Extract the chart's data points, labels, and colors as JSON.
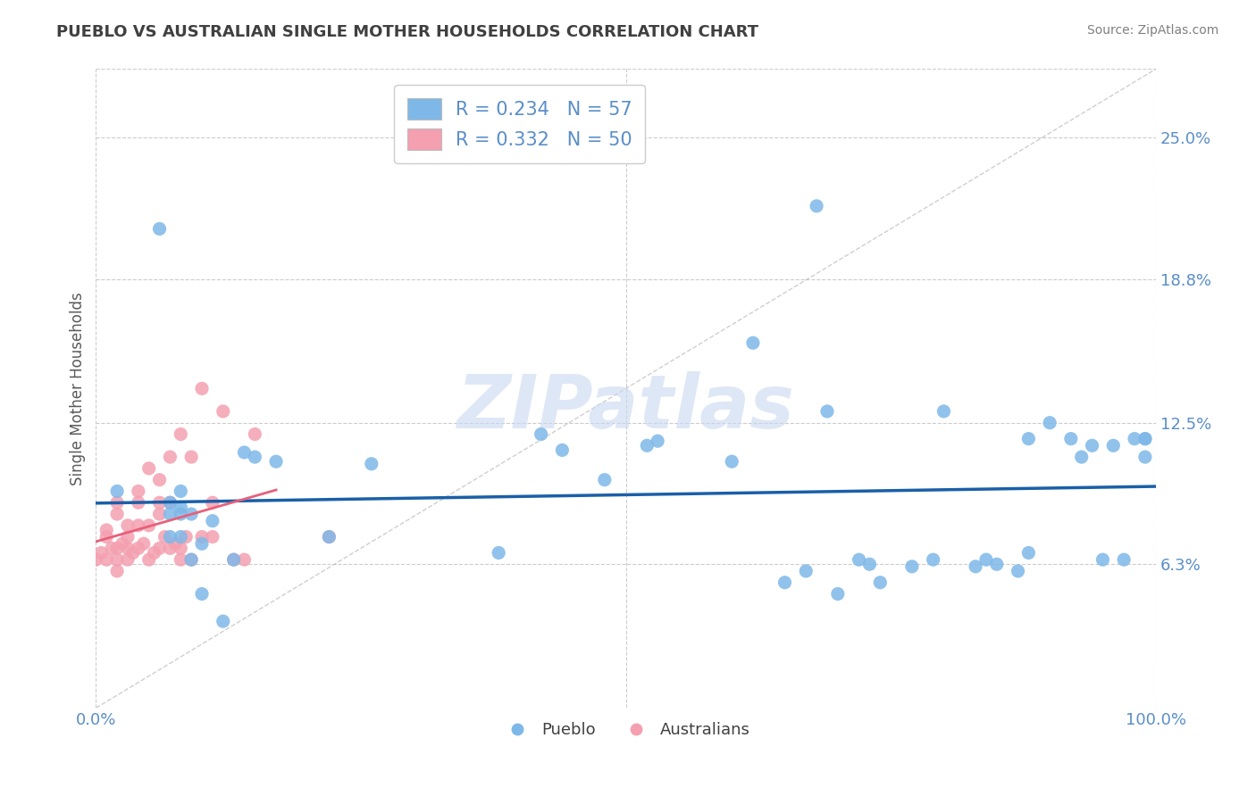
{
  "title": "PUEBLO VS AUSTRALIAN SINGLE MOTHER HOUSEHOLDS CORRELATION CHART",
  "source_text": "Source: ZipAtlas.com",
  "ylabel": "Single Mother Households",
  "xlim": [
    0.0,
    1.0
  ],
  "ylim": [
    0.0,
    0.28
  ],
  "yticks": [
    0.063,
    0.125,
    0.188,
    0.25
  ],
  "ytick_labels": [
    "6.3%",
    "12.5%",
    "18.8%",
    "25.0%"
  ],
  "xtick_labels": [
    "0.0%",
    "100.0%"
  ],
  "pueblo_color": "#7eb8e8",
  "australians_color": "#f4a0b0",
  "pueblo_line_color": "#1a5fa8",
  "australians_line_color": "#e8607a",
  "r_pueblo": 0.234,
  "n_pueblo": 57,
  "r_australians": 0.332,
  "n_australians": 50,
  "pueblo_x": [
    0.02,
    0.06,
    0.07,
    0.07,
    0.07,
    0.08,
    0.08,
    0.08,
    0.08,
    0.09,
    0.09,
    0.1,
    0.1,
    0.11,
    0.12,
    0.13,
    0.14,
    0.15,
    0.17,
    0.22,
    0.26,
    0.38,
    0.42,
    0.44,
    0.48,
    0.52,
    0.53,
    0.6,
    0.62,
    0.65,
    0.67,
    0.68,
    0.69,
    0.7,
    0.72,
    0.73,
    0.74,
    0.77,
    0.79,
    0.8,
    0.83,
    0.84,
    0.85,
    0.87,
    0.88,
    0.88,
    0.9,
    0.92,
    0.93,
    0.94,
    0.95,
    0.96,
    0.97,
    0.98,
    0.99,
    0.99,
    0.99
  ],
  "pueblo_y": [
    0.095,
    0.21,
    0.09,
    0.085,
    0.075,
    0.085,
    0.088,
    0.095,
    0.075,
    0.085,
    0.065,
    0.05,
    0.072,
    0.082,
    0.038,
    0.065,
    0.112,
    0.11,
    0.108,
    0.075,
    0.107,
    0.068,
    0.12,
    0.113,
    0.1,
    0.115,
    0.117,
    0.108,
    0.16,
    0.055,
    0.06,
    0.22,
    0.13,
    0.05,
    0.065,
    0.063,
    0.055,
    0.062,
    0.065,
    0.13,
    0.062,
    0.065,
    0.063,
    0.06,
    0.118,
    0.068,
    0.125,
    0.118,
    0.11,
    0.115,
    0.065,
    0.115,
    0.065,
    0.118,
    0.118,
    0.11,
    0.118
  ],
  "australians_x": [
    0.0,
    0.005,
    0.01,
    0.01,
    0.01,
    0.015,
    0.02,
    0.02,
    0.02,
    0.02,
    0.02,
    0.025,
    0.03,
    0.03,
    0.03,
    0.03,
    0.035,
    0.04,
    0.04,
    0.04,
    0.04,
    0.045,
    0.05,
    0.05,
    0.05,
    0.055,
    0.06,
    0.06,
    0.06,
    0.06,
    0.065,
    0.07,
    0.07,
    0.07,
    0.075,
    0.08,
    0.08,
    0.08,
    0.085,
    0.09,
    0.09,
    0.1,
    0.1,
    0.11,
    0.11,
    0.12,
    0.13,
    0.14,
    0.15,
    0.22
  ],
  "australians_y": [
    0.065,
    0.068,
    0.065,
    0.075,
    0.078,
    0.07,
    0.085,
    0.09,
    0.07,
    0.06,
    0.065,
    0.072,
    0.075,
    0.07,
    0.08,
    0.065,
    0.068,
    0.09,
    0.08,
    0.07,
    0.095,
    0.072,
    0.105,
    0.08,
    0.065,
    0.068,
    0.1,
    0.09,
    0.085,
    0.07,
    0.075,
    0.11,
    0.09,
    0.07,
    0.072,
    0.065,
    0.12,
    0.07,
    0.075,
    0.065,
    0.11,
    0.075,
    0.14,
    0.09,
    0.075,
    0.13,
    0.065,
    0.065,
    0.12,
    0.075
  ],
  "watermark_text": "ZIPatlas",
  "watermark_color": "#c8d8f0",
  "background_color": "#ffffff",
  "title_color": "#404040",
  "axis_label_color": "#5a5a5a",
  "tick_label_color": "#5a8ec8",
  "legend_color": "#5a8ec8",
  "source_color": "#808080"
}
